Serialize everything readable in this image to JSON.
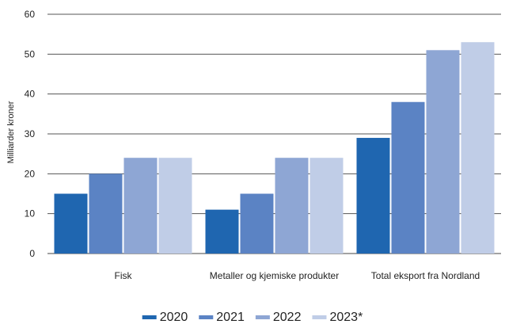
{
  "chart_data": {
    "type": "bar",
    "title": "",
    "xlabel": "",
    "ylabel": "Milliarder kroner",
    "ylim": [
      0,
      60
    ],
    "yticks": [
      0,
      10,
      20,
      30,
      40,
      50,
      60
    ],
    "grid": true,
    "legend_position": "bottom",
    "categories": [
      "Fisk",
      "Metaller og kjemiske produkter",
      "Total eksport fra Nordland"
    ],
    "series": [
      {
        "name": "2020",
        "color": "#1f66b0",
        "values": [
          15,
          11,
          29
        ]
      },
      {
        "name": "2021",
        "color": "#5b83c4",
        "values": [
          20,
          15,
          38
        ]
      },
      {
        "name": "2022",
        "color": "#8ea6d4",
        "values": [
          24,
          24,
          51
        ]
      },
      {
        "name": "2023*",
        "color": "#c0cde7",
        "values": [
          24,
          24,
          53
        ]
      }
    ]
  }
}
